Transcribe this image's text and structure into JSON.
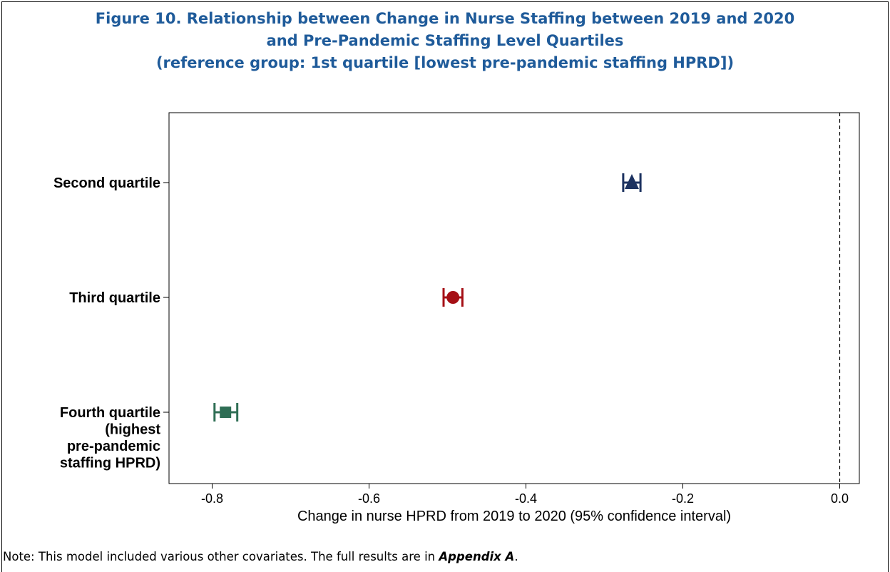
{
  "figure": {
    "title_lines": [
      "Figure 10.  Relationship between Change in Nurse Staffing between 2019 and 2020",
      "and Pre-Pandemic Staffing Level Quartiles",
      "(reference group: 1st quartile [lowest pre-pandemic staffing HPRD])"
    ],
    "note_text": "Note: This model included various other covariates. The full results are in ",
    "note_emphasis": "Appendix A",
    "note_end": "."
  },
  "chart_data": {
    "type": "scatter",
    "orientation": "horizontal",
    "xlabel": "Change in nurse HPRD from 2019 to 2020 (95% confidence interval)",
    "xlim": [
      -0.855,
      0.025
    ],
    "xticks": [
      -0.8,
      -0.6,
      -0.4,
      -0.2,
      0.0
    ],
    "xtick_labels": [
      "-0.8",
      "-0.6",
      "-0.4",
      "-0.2",
      "0.0"
    ],
    "reference_line": 0.0,
    "grid": false,
    "categories": [
      {
        "label_lines": [
          "Second quartile"
        ],
        "estimate": -0.265,
        "ci": [
          -0.276,
          -0.254
        ],
        "marker": "triangle",
        "color": "#1c3260"
      },
      {
        "label_lines": [
          "Third quartile"
        ],
        "estimate": -0.493,
        "ci": [
          -0.505,
          -0.481
        ],
        "marker": "circle",
        "color": "#a50f15"
      },
      {
        "label_lines": [
          "Fourth quartile",
          "(highest",
          "pre-pandemic",
          "staffing HPRD)"
        ],
        "estimate": -0.783,
        "ci": [
          -0.797,
          -0.768
        ],
        "marker": "square",
        "color": "#2f6e55"
      }
    ]
  }
}
